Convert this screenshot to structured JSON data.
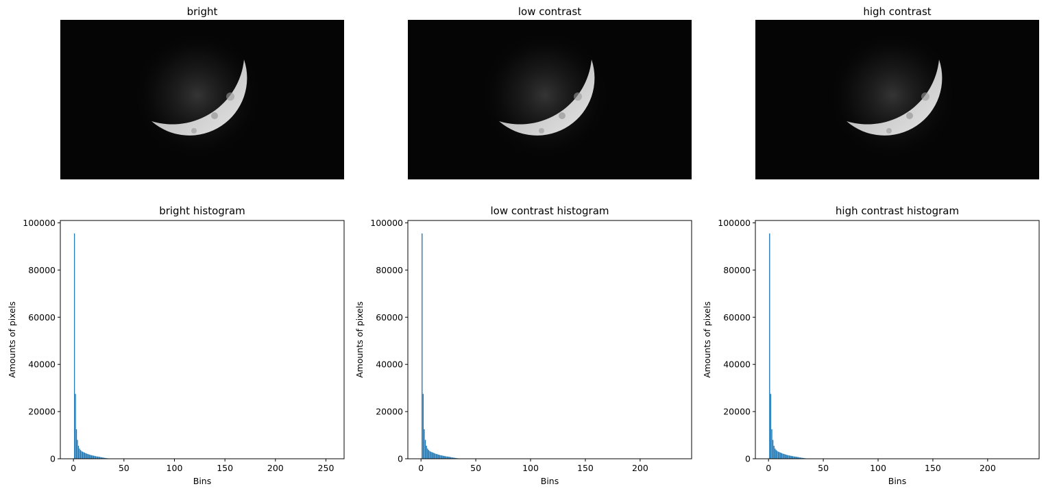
{
  "images": [
    {
      "title": "bright"
    },
    {
      "title": "low contrast"
    },
    {
      "title": "high contrast"
    }
  ],
  "colors": {
    "bar": "#1f77b4",
    "image_background": "#050505",
    "moon": "#d9d9d9"
  },
  "chart_data": [
    {
      "type": "bar",
      "title": "bright histogram",
      "xlabel": "Bins",
      "ylabel": "Amounts of pixels",
      "xlim": [
        -13,
        268
      ],
      "ylim": [
        0,
        101000
      ],
      "xticks": [
        0,
        50,
        100,
        150,
        200,
        250
      ],
      "yticks": [
        0,
        20000,
        40000,
        60000,
        80000,
        100000
      ],
      "grid": false,
      "x": [
        1,
        2,
        3,
        4,
        5,
        6,
        7,
        8,
        9,
        10,
        11,
        12,
        13,
        14,
        15,
        16,
        17,
        18,
        19,
        20,
        21,
        22,
        23,
        24,
        25,
        26,
        27,
        28,
        29,
        30,
        31,
        32,
        33,
        34,
        35,
        36,
        37,
        38
      ],
      "values": [
        95500,
        27500,
        12500,
        8000,
        5500,
        4300,
        3700,
        3300,
        3000,
        2800,
        2600,
        2400,
        2200,
        2050,
        1900,
        1750,
        1600,
        1500,
        1400,
        1300,
        1200,
        1100,
        1000,
        950,
        900,
        800,
        700,
        620,
        540,
        460,
        380,
        310,
        240,
        180,
        130,
        90,
        50,
        25
      ]
    },
    {
      "type": "bar",
      "title": "low contrast histogram",
      "xlabel": "Bins",
      "ylabel": "Amounts of pixels",
      "xlim": [
        -12,
        247
      ],
      "ylim": [
        0,
        101000
      ],
      "xticks": [
        0,
        50,
        100,
        150,
        200
      ],
      "yticks": [
        0,
        20000,
        40000,
        60000,
        80000,
        100000
      ],
      "grid": false,
      "x": [
        1,
        2,
        3,
        4,
        5,
        6,
        7,
        8,
        9,
        10,
        11,
        12,
        13,
        14,
        15,
        16,
        17,
        18,
        19,
        20,
        21,
        22,
        23,
        24,
        25,
        26,
        27,
        28,
        29,
        30,
        31,
        32,
        33,
        34,
        35,
        36,
        37,
        38
      ],
      "values": [
        95500,
        27500,
        12500,
        8000,
        5500,
        4300,
        3700,
        3300,
        3000,
        2800,
        2600,
        2400,
        2200,
        2050,
        1900,
        1750,
        1600,
        1500,
        1400,
        1300,
        1200,
        1100,
        1000,
        950,
        900,
        800,
        700,
        620,
        540,
        460,
        380,
        310,
        240,
        180,
        130,
        90,
        50,
        25
      ]
    },
    {
      "type": "bar",
      "title": "high contrast histogram",
      "xlabel": "Bins",
      "ylabel": "Amounts of pixels",
      "xlim": [
        -12,
        247
      ],
      "ylim": [
        0,
        101000
      ],
      "xticks": [
        0,
        50,
        100,
        150,
        200
      ],
      "yticks": [
        0,
        20000,
        40000,
        60000,
        80000,
        100000
      ],
      "grid": false,
      "x": [
        1,
        2,
        3,
        4,
        5,
        6,
        7,
        8,
        9,
        10,
        11,
        12,
        13,
        14,
        15,
        16,
        17,
        18,
        19,
        20,
        21,
        22,
        23,
        24,
        25,
        26,
        27,
        28,
        29,
        30,
        31,
        32,
        33,
        34,
        35,
        36,
        37,
        38
      ],
      "values": [
        95500,
        27500,
        12500,
        8000,
        5500,
        4300,
        3700,
        3300,
        3000,
        2800,
        2600,
        2400,
        2200,
        2050,
        1900,
        1750,
        1600,
        1500,
        1400,
        1300,
        1200,
        1100,
        1000,
        950,
        900,
        800,
        700,
        620,
        540,
        460,
        380,
        310,
        240,
        180,
        130,
        90,
        50,
        25
      ]
    }
  ]
}
